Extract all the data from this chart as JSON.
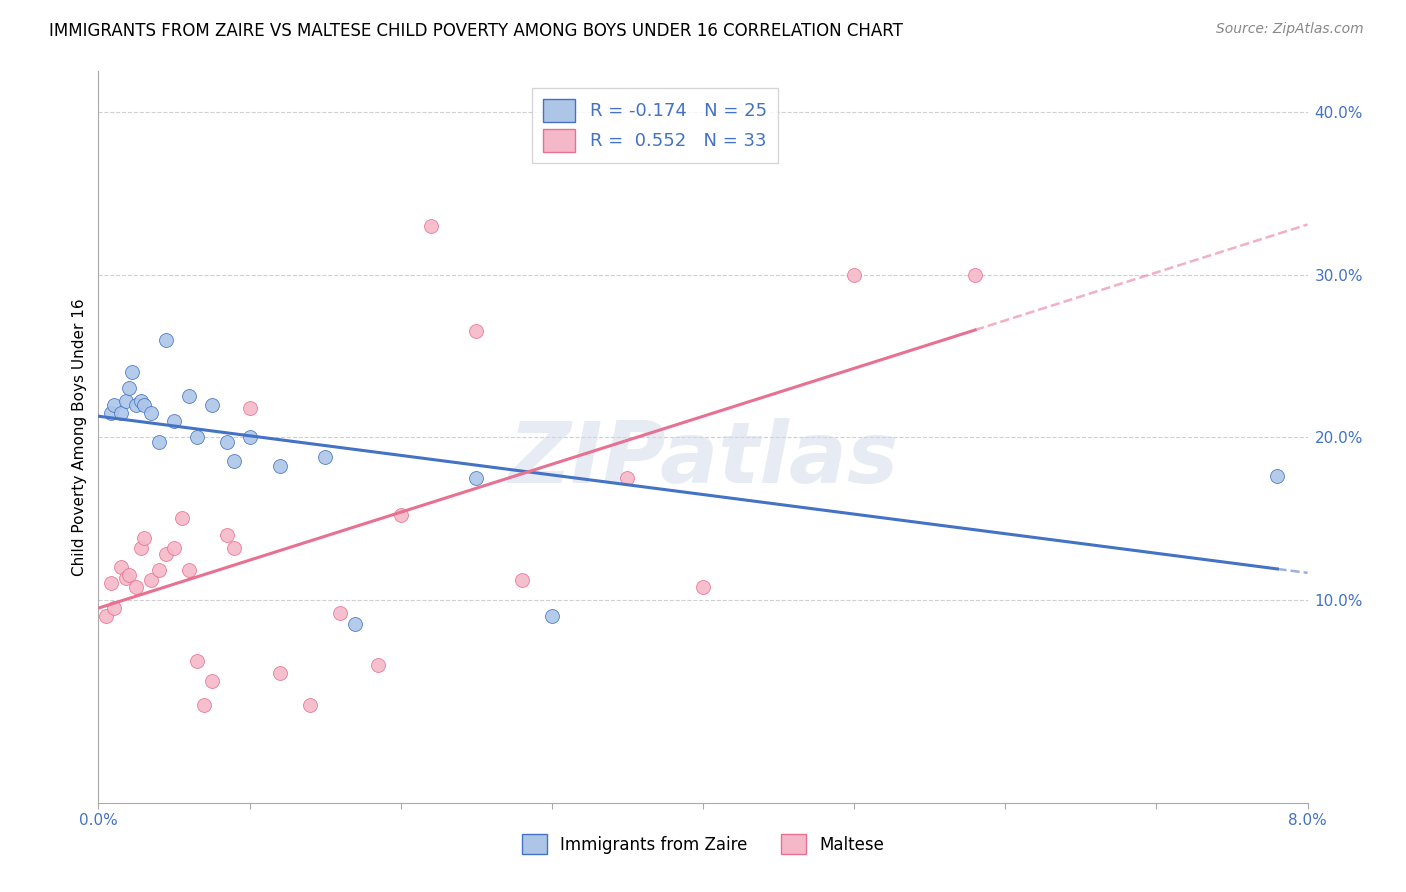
{
  "title": "IMMIGRANTS FROM ZAIRE VS MALTESE CHILD POVERTY AMONG BOYS UNDER 16 CORRELATION CHART",
  "source": "Source: ZipAtlas.com",
  "ylabel": "Child Poverty Among Boys Under 16",
  "legend_blue_label": "R = -0.174   N = 25",
  "legend_pink_label": "R =  0.552   N = 33",
  "legend_label_blue": "Immigrants from Zaire",
  "legend_label_pink": "Maltese",
  "blue_color": "#adc6e8",
  "pink_color": "#f5b8c8",
  "blue_line_color": "#4472c4",
  "pink_line_color": "#e87090",
  "watermark": "ZIPatlas",
  "blue_x": [
    0.0008,
    0.001,
    0.0015,
    0.0018,
    0.002,
    0.0022,
    0.0025,
    0.0028,
    0.003,
    0.0035,
    0.004,
    0.0045,
    0.005,
    0.006,
    0.0065,
    0.0075,
    0.0085,
    0.009,
    0.01,
    0.012,
    0.015,
    0.017,
    0.025,
    0.03,
    0.078
  ],
  "blue_y": [
    0.215,
    0.22,
    0.215,
    0.222,
    0.23,
    0.24,
    0.22,
    0.222,
    0.22,
    0.215,
    0.197,
    0.26,
    0.21,
    0.225,
    0.2,
    0.22,
    0.197,
    0.185,
    0.2,
    0.182,
    0.188,
    0.085,
    0.175,
    0.09,
    0.176
  ],
  "pink_x": [
    0.0005,
    0.0008,
    0.001,
    0.0015,
    0.0018,
    0.002,
    0.0025,
    0.0028,
    0.003,
    0.0035,
    0.004,
    0.0045,
    0.005,
    0.0055,
    0.006,
    0.0065,
    0.007,
    0.0075,
    0.0085,
    0.009,
    0.01,
    0.012,
    0.014,
    0.016,
    0.0185,
    0.02,
    0.022,
    0.025,
    0.028,
    0.035,
    0.04,
    0.05,
    0.058
  ],
  "pink_y": [
    0.09,
    0.11,
    0.095,
    0.12,
    0.113,
    0.115,
    0.108,
    0.132,
    0.138,
    0.112,
    0.118,
    0.128,
    0.132,
    0.15,
    0.118,
    0.062,
    0.035,
    0.05,
    0.14,
    0.132,
    0.218,
    0.055,
    0.035,
    0.092,
    0.06,
    0.152,
    0.33,
    0.265,
    0.112,
    0.175,
    0.108,
    0.3,
    0.3
  ],
  "xlim": [
    0.0,
    0.08
  ],
  "ylim": [
    -0.025,
    0.425
  ],
  "ytick_positions": [
    0.1,
    0.2,
    0.3,
    0.4
  ],
  "ytick_labels": [
    "10.0%",
    "20.0%",
    "30.0%",
    "40.0%"
  ],
  "xtick_show": [
    0.0,
    0.08
  ],
  "xtick_labels": [
    "0.0%",
    "8.0%"
  ],
  "blue_scatter_size": 100,
  "pink_scatter_size": 100,
  "dpi": 100,
  "figsize": [
    14.06,
    8.92
  ]
}
